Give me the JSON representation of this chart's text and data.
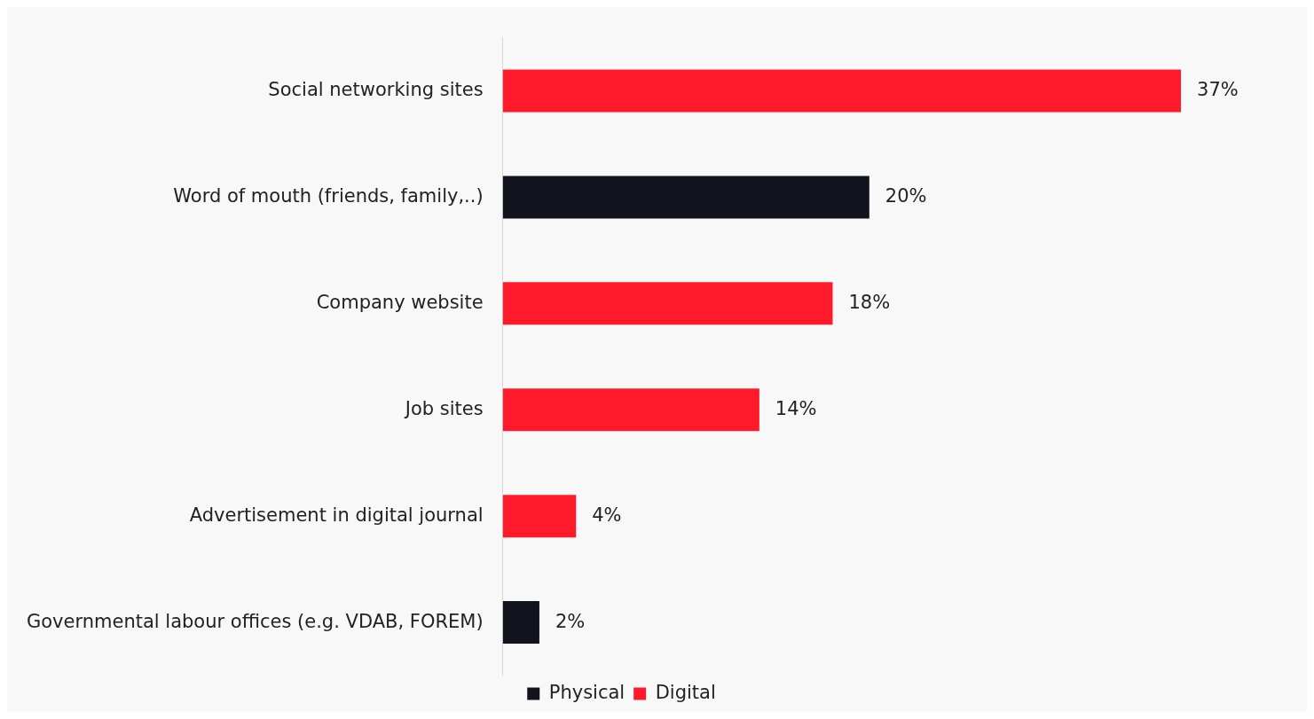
{
  "chart_data": {
    "type": "bar",
    "orientation": "horizontal",
    "stacked": true,
    "categories": [
      "Social networking sites",
      "Word of mouth (friends, family,..)",
      "Company website",
      "Job sites",
      "Advertisement in digital journal",
      "Governmental labour offices (e.g. VDAB, FOREM)"
    ],
    "series": [
      {
        "name": "Physical",
        "color": "#11141d",
        "values": [
          null,
          20,
          null,
          null,
          null,
          2
        ],
        "value_labels": [
          null,
          "20%",
          null,
          null,
          null,
          "2%"
        ]
      },
      {
        "name": "Digital",
        "color": "#ff1a2b",
        "values": [
          37,
          null,
          18,
          14,
          4,
          null
        ],
        "value_labels": [
          "37%",
          null,
          "18%",
          "14%",
          "4%",
          null
        ]
      }
    ],
    "tick_labels": "y",
    "legend": "bottom"
  }
}
